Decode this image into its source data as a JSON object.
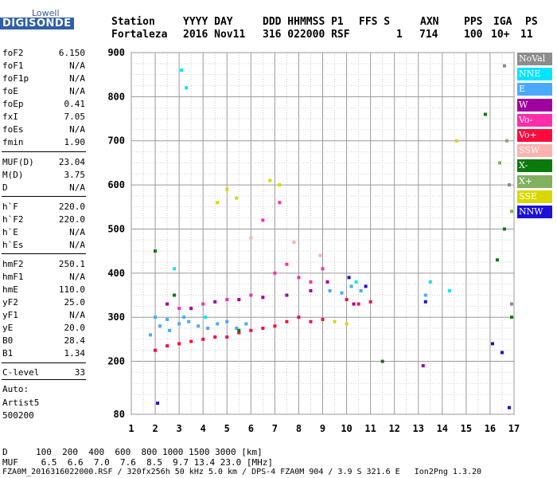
{
  "logo": {
    "top": "Lowell",
    "bottom": "DIGISONDE"
  },
  "header": {
    "labels": [
      "Station",
      "YYYY DAY",
      "DDD HHMMSS P1",
      "FFS S",
      "AXN",
      "PPS",
      "IGA",
      "PS"
    ],
    "values": [
      "Fortaleza",
      "2016 Nov11",
      "316 022000 RSF",
      "1",
      "714",
      "100",
      "10+",
      "11"
    ]
  },
  "params": [
    {
      "name": "foF2",
      "value": "6.150"
    },
    {
      "name": "foF1",
      "value": "N/A"
    },
    {
      "name": "foF1p",
      "value": "N/A"
    },
    {
      "name": "foE",
      "value": "N/A"
    },
    {
      "name": "foEp",
      "value": "0.41"
    },
    {
      "name": "fxI",
      "value": "7.05"
    },
    {
      "name": "foEs",
      "value": "N/A"
    },
    {
      "name": "fmin",
      "value": "1.90"
    },
    {
      "name": "MUF(D)",
      "value": "23.04"
    },
    {
      "name": "M(D)",
      "value": "3.75"
    },
    {
      "name": "D",
      "value": "N/A"
    },
    {
      "name": "h`F",
      "value": "220.0"
    },
    {
      "name": "h`F2",
      "value": "220.0"
    },
    {
      "name": "h`E",
      "value": "N/A"
    },
    {
      "name": "h`Es",
      "value": "N/A"
    },
    {
      "name": "hmF2",
      "value": "250.1"
    },
    {
      "name": "hmF1",
      "value": "N/A"
    },
    {
      "name": "hmE",
      "value": "110.0"
    },
    {
      "name": "yF2",
      "value": "25.0"
    },
    {
      "name": "yF1",
      "value": "N/A"
    },
    {
      "name": "yE",
      "value": "20.0"
    },
    {
      "name": "B0",
      "value": "28.4"
    },
    {
      "name": "B1",
      "value": "1.34"
    },
    {
      "name": "C-level",
      "value": "33"
    }
  ],
  "auto": {
    "label": "Auto:",
    "line1": "Artist5",
    "line2": "500200"
  },
  "legend": [
    {
      "label": "NoVal",
      "color": "#8c8c8c"
    },
    {
      "label": "NNE",
      "color": "#00e5ff"
    },
    {
      "label": "E",
      "color": "#4aa8ff"
    },
    {
      "label": "W",
      "color": "#a0009f"
    },
    {
      "label": "Vo-",
      "color": "#ff2ea8"
    },
    {
      "label": "Vo+",
      "color": "#ff0a3c"
    },
    {
      "label": "SSW",
      "color": "#ffb0b0"
    },
    {
      "label": "X-",
      "color": "#0a7a0a"
    },
    {
      "label": "X+",
      "color": "#80b060"
    },
    {
      "label": "SSE",
      "color": "#d8d800"
    },
    {
      "label": "NNW",
      "color": "#1a10d8"
    }
  ],
  "footer": {
    "d_label": "D",
    "d_values": "100  200  400  600  800 1000 1500 3000 [km]",
    "muf_label": "MUF",
    "muf_values": " 6.5  6.6  7.0  7.6  8.5  9.7 13.4 23.0 [MHz]",
    "file_line": "FZA0M_2016316022000.RSF / 320fx256h 50 kHz 5.0 km / DPS-4 FZA0M 904 / 3.9 S 321.6 E   Ion2Png 1.3.20"
  },
  "chart_data": {
    "type": "scatter",
    "title": "",
    "xlabel": "",
    "ylabel": "",
    "xlim": [
      1,
      17
    ],
    "ylim": [
      80,
      900
    ],
    "x_ticks": [
      1,
      2,
      3,
      4,
      5,
      6,
      7,
      8,
      9,
      10,
      11,
      12,
      13,
      14,
      15,
      16,
      17
    ],
    "x_tick_labels": [
      "1",
      "2",
      "3",
      "4",
      "5",
      "6",
      "7",
      "8",
      "9",
      "10",
      "11",
      "12",
      "13",
      "14",
      "15",
      "16",
      "17"
    ],
    "y_ticks": [
      80,
      200,
      300,
      400,
      500,
      600,
      700,
      800,
      900
    ],
    "y_tick_labels": [
      "80",
      "200",
      "300",
      "400",
      "500",
      "600",
      "700",
      "800",
      "900"
    ],
    "grid": true,
    "legend_position": "right",
    "series": [
      {
        "name": "E",
        "color": "#4aa8ff",
        "points": [
          [
            1.8,
            260
          ],
          [
            2.2,
            280
          ],
          [
            2.6,
            270
          ],
          [
            3.0,
            285
          ],
          [
            3.4,
            290
          ],
          [
            3.8,
            280
          ],
          [
            4.2,
            275
          ],
          [
            4.6,
            285
          ],
          [
            5.0,
            290
          ],
          [
            5.4,
            275
          ],
          [
            5.8,
            285
          ],
          [
            2.0,
            300
          ],
          [
            2.5,
            295
          ],
          [
            3.2,
            300
          ],
          [
            9.3,
            360
          ],
          [
            9.8,
            355
          ],
          [
            10.2,
            370
          ],
          [
            10.6,
            360
          ],
          [
            13.3,
            350
          ]
        ]
      },
      {
        "name": "Vo+",
        "color": "#ff0a3c",
        "points": [
          [
            2.0,
            225
          ],
          [
            2.5,
            235
          ],
          [
            3.0,
            240
          ],
          [
            3.5,
            245
          ],
          [
            4.0,
            250
          ],
          [
            4.5,
            255
          ],
          [
            5.0,
            255
          ],
          [
            5.5,
            265
          ],
          [
            6.0,
            270
          ],
          [
            6.5,
            275
          ],
          [
            7.0,
            280
          ],
          [
            7.5,
            290
          ],
          [
            8.0,
            300
          ],
          [
            8.5,
            290
          ],
          [
            9.0,
            295
          ],
          [
            10.0,
            340
          ],
          [
            10.5,
            330
          ],
          [
            11.0,
            335
          ]
        ]
      },
      {
        "name": "Vo-",
        "color": "#ff2ea8",
        "points": [
          [
            3.0,
            320
          ],
          [
            4.0,
            330
          ],
          [
            5.0,
            340
          ],
          [
            6.0,
            350
          ],
          [
            7.0,
            400
          ],
          [
            7.5,
            420
          ],
          [
            8.0,
            390
          ],
          [
            8.5,
            380
          ],
          [
            9.0,
            410
          ],
          [
            6.5,
            520
          ],
          [
            7.2,
            560
          ]
        ]
      },
      {
        "name": "W",
        "color": "#a0009f",
        "points": [
          [
            2.5,
            330
          ],
          [
            3.5,
            320
          ],
          [
            4.5,
            335
          ],
          [
            5.5,
            340
          ],
          [
            6.5,
            345
          ],
          [
            7.5,
            350
          ],
          [
            8.5,
            360
          ],
          [
            9.2,
            380
          ],
          [
            10.3,
            330
          ],
          [
            13.2,
            190
          ]
        ]
      },
      {
        "name": "SSE",
        "color": "#d8d800",
        "points": [
          [
            4.6,
            560
          ],
          [
            5.0,
            590
          ],
          [
            5.4,
            570
          ],
          [
            6.8,
            610
          ],
          [
            7.2,
            600
          ],
          [
            9.5,
            290
          ],
          [
            10.0,
            285
          ],
          [
            14.6,
            700
          ]
        ]
      },
      {
        "name": "X-",
        "color": "#0a7a0a",
        "points": [
          [
            2.0,
            450
          ],
          [
            2.8,
            350
          ],
          [
            5.5,
            270
          ],
          [
            11.5,
            200
          ],
          [
            15.8,
            760
          ],
          [
            16.3,
            430
          ],
          [
            16.6,
            500
          ],
          [
            16.9,
            300
          ]
        ]
      },
      {
        "name": "NNE",
        "color": "#00e5ff",
        "points": [
          [
            3.1,
            860
          ],
          [
            3.3,
            820
          ],
          [
            2.8,
            410
          ],
          [
            4.1,
            300
          ],
          [
            10.4,
            380
          ],
          [
            13.5,
            380
          ],
          [
            14.3,
            360
          ]
        ]
      },
      {
        "name": "NNW",
        "color": "#1a10d8",
        "points": [
          [
            10.1,
            390
          ],
          [
            10.8,
            370
          ],
          [
            13.3,
            335
          ],
          [
            16.1,
            240
          ],
          [
            16.5,
            220
          ],
          [
            16.8,
            95
          ],
          [
            2.1,
            105
          ]
        ]
      },
      {
        "name": "NoVal",
        "color": "#8c8c8c",
        "points": [
          [
            16.6,
            870
          ],
          [
            16.8,
            600
          ],
          [
            16.9,
            330
          ]
        ]
      },
      {
        "name": "X+",
        "color": "#80b060",
        "points": [
          [
            16.7,
            700
          ],
          [
            16.9,
            540
          ],
          [
            16.4,
            650
          ]
        ]
      },
      {
        "name": "SSW",
        "color": "#ffb0b0",
        "points": [
          [
            6.0,
            480
          ],
          [
            7.8,
            470
          ],
          [
            8.9,
            440
          ]
        ]
      }
    ]
  }
}
